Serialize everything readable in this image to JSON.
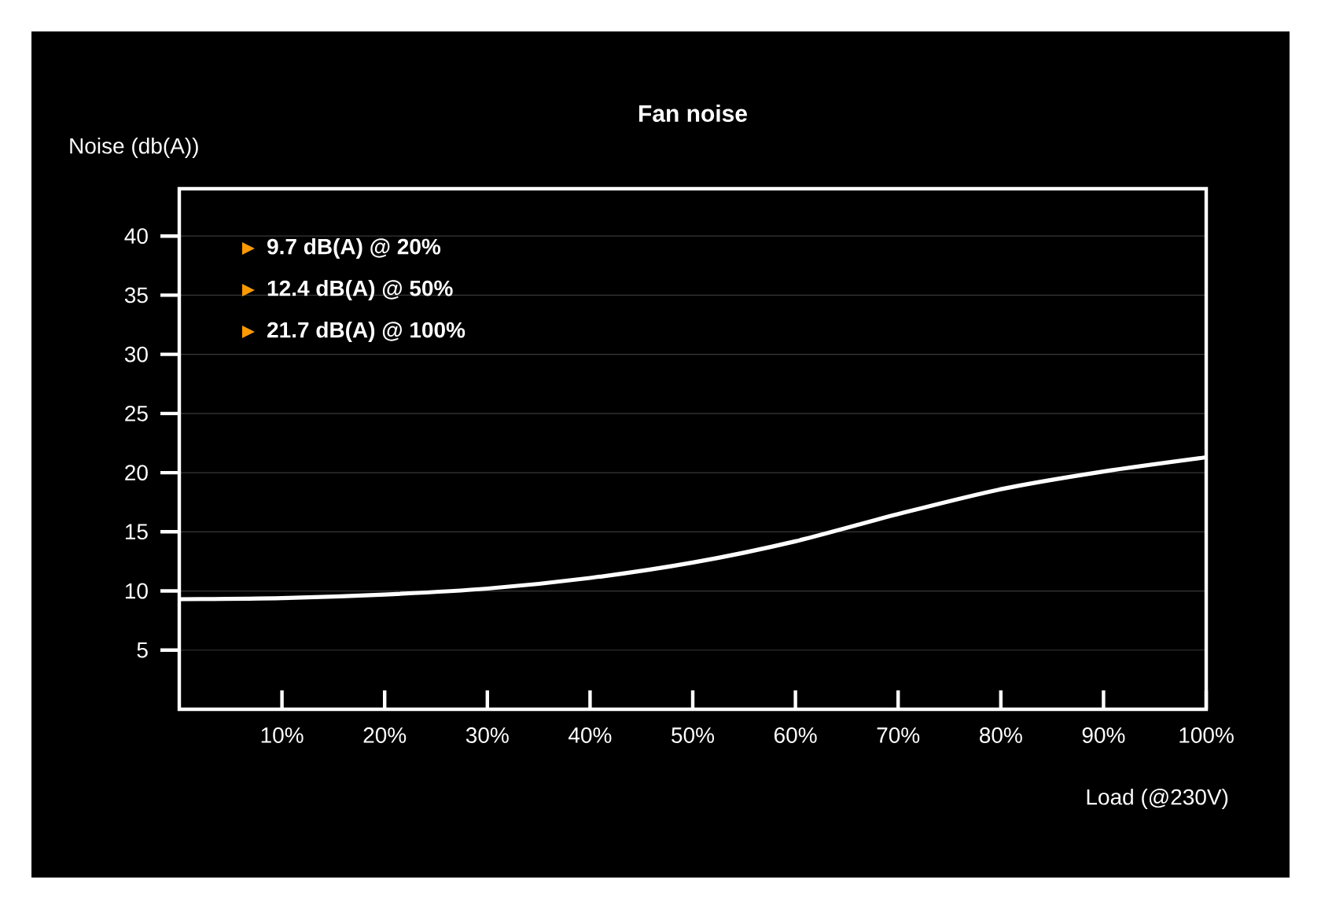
{
  "chart_data": {
    "type": "line",
    "title": "Fan noise",
    "xlabel": "Load (@230V)",
    "ylabel": "Noise (db(A))",
    "annotations": [
      "9.7 dB(A) @ 20%",
      "12.4 dB(A) @ 50%",
      "21.7 dB(A) @ 100%"
    ],
    "x": [
      0,
      10,
      20,
      30,
      40,
      50,
      60,
      70,
      80,
      90,
      100
    ],
    "values": [
      9.3,
      9.4,
      9.7,
      10.2,
      11.1,
      12.4,
      14.2,
      16.5,
      18.6,
      20.1,
      21.3
    ],
    "color": "#ffffff",
    "line_style": "solid",
    "grid": "y",
    "xlim": [
      0,
      100
    ],
    "ylim": [
      0,
      44
    ],
    "xticks": [
      {
        "value": 10,
        "label": "10%"
      },
      {
        "value": 20,
        "label": "20%"
      },
      {
        "value": 30,
        "label": "30%"
      },
      {
        "value": 40,
        "label": "40%"
      },
      {
        "value": 50,
        "label": "50%"
      },
      {
        "value": 60,
        "label": "60%"
      },
      {
        "value": 70,
        "label": "70%"
      },
      {
        "value": 80,
        "label": "80%"
      },
      {
        "value": 90,
        "label": "90%"
      },
      {
        "value": 100,
        "label": "100%"
      }
    ],
    "yticks": [
      5,
      10,
      15,
      20,
      25,
      30,
      35,
      40
    ]
  }
}
